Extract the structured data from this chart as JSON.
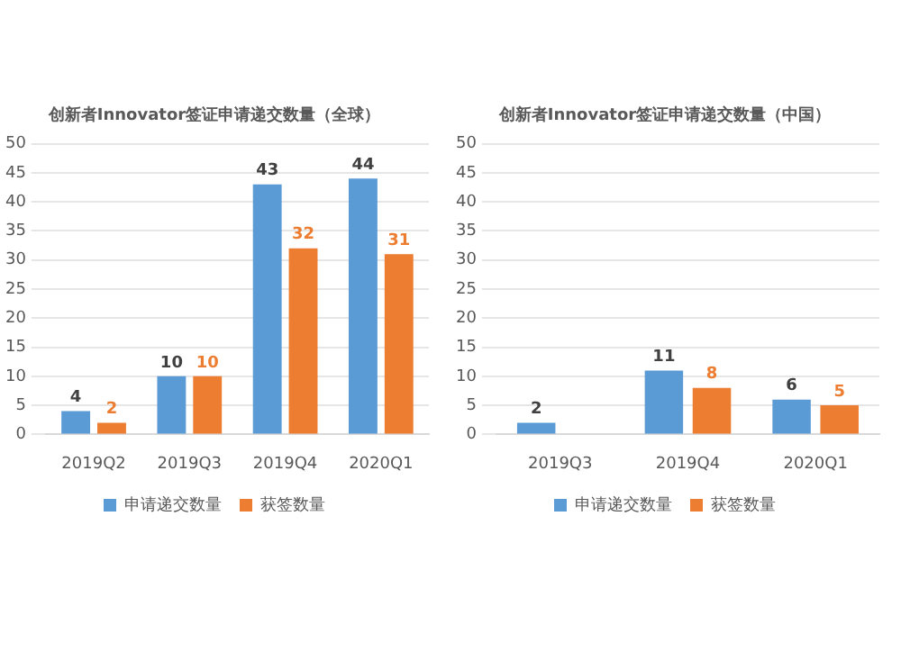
{
  "chart_data": [
    {
      "type": "bar",
      "title": "创新者Innovator签证申请递交数量（全球）",
      "categories": [
        "2019Q2",
        "2019Q3",
        "2019Q4",
        "2020Q1"
      ],
      "series": [
        {
          "name": "申请递交数量",
          "color": "#5b9bd5",
          "values": [
            4,
            10,
            43,
            44
          ]
        },
        {
          "name": "获签数量",
          "color": "#ed7d31",
          "values": [
            2,
            10,
            32,
            31
          ]
        }
      ],
      "ylim": [
        0,
        50
      ],
      "yticks": [
        0,
        5,
        10,
        15,
        20,
        25,
        30,
        35,
        40,
        45,
        50
      ],
      "grid": "y",
      "legend": "bottom",
      "data_labels": true
    },
    {
      "type": "bar",
      "title": "创新者Innovator签证申请递交数量（中国）",
      "categories": [
        "2019Q3",
        "2019Q4",
        "2020Q1"
      ],
      "series": [
        {
          "name": "申请递交数量",
          "color": "#5b9bd5",
          "values": [
            2,
            11,
            6
          ]
        },
        {
          "name": "获签数量",
          "color": "#ed7d31",
          "values": [
            null,
            8,
            5
          ]
        }
      ],
      "ylim": [
        0,
        50
      ],
      "yticks": [
        0,
        5,
        10,
        15,
        20,
        25,
        30,
        35,
        40,
        45,
        50
      ],
      "grid": "y",
      "legend": "bottom",
      "data_labels": true
    }
  ]
}
